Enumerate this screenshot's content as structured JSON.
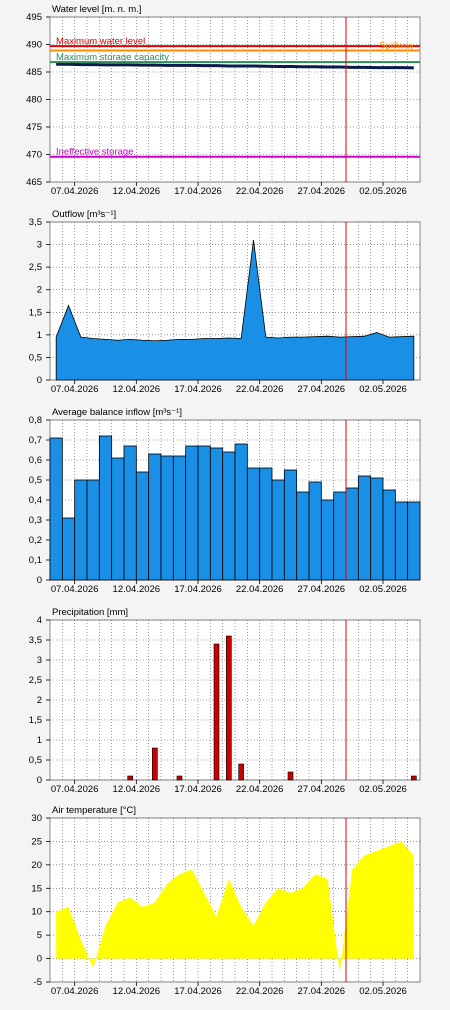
{
  "chart_data": [
    {
      "type": "line",
      "title": "Water level [m. n. m.]",
      "x": [
        "05.04.2026",
        "06.04.2026",
        "07.04.2026",
        "08.04.2026",
        "09.04.2026",
        "10.04.2026",
        "11.04.2026",
        "12.04.2026",
        "13.04.2026",
        "14.04.2026",
        "15.04.2026",
        "16.04.2026",
        "17.04.2026",
        "18.04.2026",
        "19.04.2026",
        "20.04.2026",
        "21.04.2026",
        "22.04.2026",
        "23.04.2026",
        "24.04.2026",
        "25.04.2026",
        "26.04.2026",
        "27.04.2026",
        "28.04.2026",
        "29.04.2026",
        "30.04.2026",
        "01.05.2026",
        "02.05.2026",
        "03.05.2026",
        "04.05.2026"
      ],
      "values": [
        486.4,
        486.4,
        486.35,
        486.35,
        486.3,
        486.3,
        486.3,
        486.25,
        486.25,
        486.2,
        486.2,
        486.2,
        486.15,
        486.15,
        486.1,
        486.1,
        486.1,
        486.05,
        486.0,
        486.0,
        485.95,
        485.95,
        485.9,
        485.9,
        485.85,
        485.85,
        485.8,
        485.8,
        485.8,
        485.75
      ],
      "color": "#0a1a4a",
      "xlim": [
        "05.04.2026",
        "05.05.2026"
      ],
      "xticks": [
        "07.04.2026",
        "12.04.2026",
        "17.04.2026",
        "22.04.2026",
        "27.04.2026",
        "02.05.2026"
      ],
      "ylim": [
        465,
        495
      ],
      "yticks": [
        465,
        470,
        475,
        480,
        485,
        490,
        495
      ],
      "grid": true,
      "now_line": {
        "x": "29.04.2026",
        "color": "#e00000"
      },
      "reference_lines": [
        {
          "label": "Maximum water level",
          "value": 489.7,
          "color": "#e00000",
          "position": "left"
        },
        {
          "label": "Spillway",
          "value": 488.9,
          "color": "#ff8c00",
          "position": "right"
        },
        {
          "label": "Maximum storage capacity",
          "value": 486.8,
          "color": "#2e8b57",
          "position": "left"
        },
        {
          "label": "Ineffective storage",
          "value": 469.6,
          "color": "#cc00cc",
          "position": "left"
        }
      ]
    },
    {
      "type": "area",
      "title": "Outflow [m³s⁻¹]",
      "x": [
        "05.04.2026",
        "06.04.2026",
        "07.04.2026",
        "08.04.2026",
        "09.04.2026",
        "10.04.2026",
        "11.04.2026",
        "12.04.2026",
        "13.04.2026",
        "14.04.2026",
        "15.04.2026",
        "16.04.2026",
        "17.04.2026",
        "18.04.2026",
        "19.04.2026",
        "20.04.2026",
        "21.04.2026",
        "22.04.2026",
        "23.04.2026",
        "24.04.2026",
        "25.04.2026",
        "26.04.2026",
        "27.04.2026",
        "28.04.2026",
        "29.04.2026",
        "30.04.2026",
        "01.05.2026",
        "02.05.2026",
        "03.05.2026",
        "04.05.2026"
      ],
      "values": [
        0.95,
        1.65,
        0.95,
        0.92,
        0.9,
        0.88,
        0.9,
        0.88,
        0.87,
        0.88,
        0.9,
        0.9,
        0.92,
        0.92,
        0.93,
        0.92,
        3.1,
        0.95,
        0.93,
        0.95,
        0.95,
        0.96,
        0.97,
        0.95,
        0.96,
        0.97,
        1.05,
        0.95,
        0.96,
        0.97
      ],
      "color": "#1a8fe6",
      "outline": "#000000",
      "xlim": [
        "05.04.2026",
        "05.05.2026"
      ],
      "xticks": [
        "07.04.2026",
        "12.04.2026",
        "17.04.2026",
        "22.04.2026",
        "27.04.2026",
        "02.05.2026"
      ],
      "ylim": [
        0,
        3.5
      ],
      "yticks": [
        0,
        {
          "value": 0.5,
          "label": "0,5"
        },
        1,
        {
          "value": 1.5,
          "label": "1,5"
        },
        2,
        {
          "value": 2.5,
          "label": "2,5"
        },
        3,
        {
          "value": 3.5,
          "label": "3,5"
        }
      ],
      "grid": true,
      "now_line": {
        "x": "29.04.2026",
        "color": "#e00000"
      }
    },
    {
      "type": "step",
      "title": "Average balance inflow [m³s⁻¹]",
      "x": [
        "05.04.2026",
        "06.04.2026",
        "07.04.2026",
        "08.04.2026",
        "09.04.2026",
        "10.04.2026",
        "11.04.2026",
        "12.04.2026",
        "13.04.2026",
        "14.04.2026",
        "15.04.2026",
        "16.04.2026",
        "17.04.2026",
        "18.04.2026",
        "19.04.2026",
        "20.04.2026",
        "21.04.2026",
        "22.04.2026",
        "23.04.2026",
        "24.04.2026",
        "25.04.2026",
        "26.04.2026",
        "27.04.2026",
        "28.04.2026",
        "29.04.2026",
        "30.04.2026",
        "01.05.2026",
        "02.05.2026",
        "03.05.2026",
        "04.05.2026"
      ],
      "values": [
        0.71,
        0.31,
        0.5,
        0.5,
        0.72,
        0.61,
        0.67,
        0.54,
        0.63,
        0.62,
        0.62,
        0.67,
        0.67,
        0.66,
        0.64,
        0.68,
        0.56,
        0.56,
        0.5,
        0.55,
        0.44,
        0.49,
        0.4,
        0.44,
        0.46,
        0.52,
        0.51,
        0.45,
        0.39,
        0.39
      ],
      "color": "#1a8fe6",
      "outline": "#000000",
      "xlim": [
        "05.04.2026",
        "05.05.2026"
      ],
      "xticks": [
        "07.04.2026",
        "12.04.2026",
        "17.04.2026",
        "22.04.2026",
        "27.04.2026",
        "02.05.2026"
      ],
      "ylim": [
        0,
        0.8
      ],
      "yticks": [
        0,
        {
          "value": 0.1,
          "label": "0,1"
        },
        {
          "value": 0.2,
          "label": "0,2"
        },
        {
          "value": 0.3,
          "label": "0,3"
        },
        {
          "value": 0.4,
          "label": "0,4"
        },
        {
          "value": 0.5,
          "label": "0,5"
        },
        {
          "value": 0.6,
          "label": "0,6"
        },
        {
          "value": 0.7,
          "label": "0,7"
        },
        {
          "value": 0.8,
          "label": "0,8"
        }
      ],
      "grid": true,
      "now_line": {
        "x": "29.04.2026",
        "color": "#e00000"
      }
    },
    {
      "type": "bar",
      "title": "Precipitation [mm]",
      "x": [
        "11.04.2026",
        "13.04.2026",
        "15.04.2026",
        "18.04.2026",
        "19.04.2026",
        "20.04.2026",
        "24.04.2026",
        "04.05.2026"
      ],
      "values": [
        0.1,
        0.8,
        0.1,
        3.4,
        3.6,
        0.4,
        0.2,
        0.1
      ],
      "color": "#cc0000",
      "outline": "#000000",
      "xlim": [
        "05.04.2026",
        "05.05.2026"
      ],
      "xticks": [
        "07.04.2026",
        "12.04.2026",
        "17.04.2026",
        "22.04.2026",
        "27.04.2026",
        "02.05.2026"
      ],
      "ylim": [
        0,
        4
      ],
      "yticks": [
        0,
        {
          "value": 0.5,
          "label": "0,5"
        },
        1,
        {
          "value": 1.5,
          "label": "1,5"
        },
        2,
        {
          "value": 2.5,
          "label": "2,5"
        },
        3,
        {
          "value": 3.5,
          "label": "3,5"
        },
        4
      ],
      "grid": true,
      "now_line": {
        "x": "29.04.2026",
        "color": "#e00000"
      }
    },
    {
      "type": "area",
      "title": "Air temperature [°C]",
      "x": [
        "05.04.2026",
        "06.04.2026",
        "07.04.2026",
        "08.04.2026",
        "09.04.2026",
        "10.04.2026",
        "11.04.2026",
        "12.04.2026",
        "13.04.2026",
        "14.04.2026",
        "15.04.2026",
        "16.04.2026",
        "17.04.2026",
        "18.04.2026",
        "19.04.2026",
        "20.04.2026",
        "21.04.2026",
        "22.04.2026",
        "23.04.2026",
        "24.04.2026",
        "25.04.2026",
        "26.04.2026",
        "27.04.2026",
        "28.04.2026",
        "29.04.2026",
        "30.04.2026",
        "01.05.2026",
        "02.05.2026",
        "03.05.2026",
        "04.05.2026"
      ],
      "values": [
        10,
        11,
        4,
        -2,
        7,
        12,
        13,
        11,
        12,
        16,
        18,
        19,
        14,
        9,
        17,
        11,
        7,
        12,
        15,
        14,
        15,
        18,
        17,
        -3,
        19,
        22,
        23,
        24,
        25,
        22
      ],
      "color": "#ffff00",
      "xlim": [
        "05.04.2026",
        "05.05.2026"
      ],
      "xticks": [
        "07.04.2026",
        "12.04.2026",
        "17.04.2026",
        "22.04.2026",
        "27.04.2026",
        "02.05.2026"
      ],
      "ylim": [
        -5,
        30
      ],
      "yticks": [
        -5,
        0,
        5,
        10,
        15,
        20,
        25,
        30
      ],
      "grid": true,
      "now_line": {
        "x": "29.04.2026",
        "color": "#e00000"
      }
    }
  ]
}
